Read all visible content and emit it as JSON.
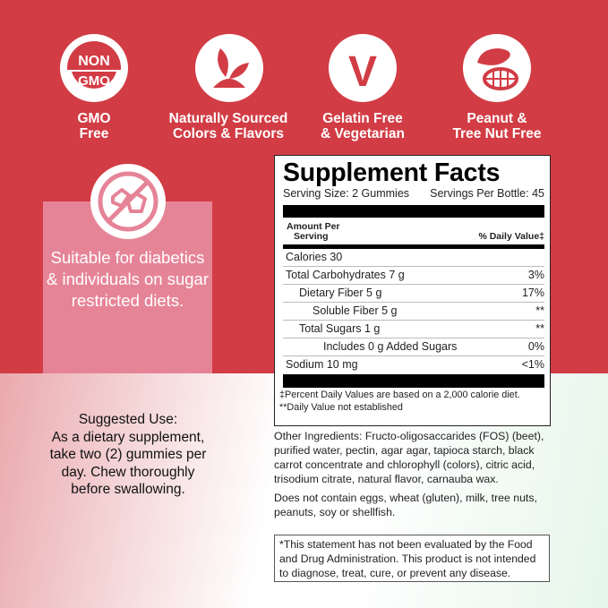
{
  "colors": {
    "brand_red": "#d23c45",
    "pink_panel": "#e68497"
  },
  "badges": [
    {
      "icon": "non-gmo-icon",
      "icon_text_top": "NON",
      "icon_text_bottom": "GMO",
      "line1": "GMO",
      "line2": "Free"
    },
    {
      "icon": "leaf-sprout-icon",
      "line1": "Naturally Sourced",
      "line2": "Colors & Flavors"
    },
    {
      "icon": "vegetarian-v-icon",
      "icon_text": "V",
      "line1": "Gelatin Free",
      "line2": "& Vegetarian"
    },
    {
      "icon": "nut-icon",
      "line1": "Peanut &",
      "line2": "Tree Nut Free"
    }
  ],
  "sugar_panel": {
    "icon": "no-sugar-icon",
    "text": "Suitable for diabetics & individuals on sugar restricted diets."
  },
  "suggested_use": {
    "title": "Suggested Use:",
    "text": "As a dietary supplement, take two (2) gummies per day. Chew thoroughly before swallowing."
  },
  "facts": {
    "title": "Supplement Facts",
    "serving_size": "Serving Size: 2 Gummies",
    "servings_per": "Servings Per Bottle: 45",
    "header_left_1": "Amount Per",
    "header_left_2": "Serving",
    "header_right": "% Daily Value‡",
    "rows": [
      {
        "name": "Calories 30",
        "dv": "",
        "indent": 0
      },
      {
        "name": "Total Carbohydrates 7 g",
        "dv": "3%",
        "indent": 0
      },
      {
        "name": "Dietary Fiber 5 g",
        "dv": "17%",
        "indent": 1
      },
      {
        "name": "Soluble Fiber 5 g",
        "dv": "**",
        "indent": 2
      },
      {
        "name": "Total Sugars 1 g",
        "dv": "**",
        "indent": 1
      },
      {
        "name": "Includes 0 g Added Sugars",
        "dv": "0%",
        "indent": 3
      },
      {
        "name": "Sodium 10 mg",
        "dv": "<1%",
        "indent": 0
      }
    ],
    "footnote_1": "‡Percent Daily Values are based on a 2,000 calorie diet.",
    "footnote_2": "**Daily Value not established"
  },
  "other_ingredients": "Other Ingredients: Fructo-oligosaccarides (FOS) (beet), purified water, pectin, agar agar, tapioca starch, black carrot concentrate and chlorophyll (colors), citric acid, trisodium citrate, natural flavor, carnauba wax.",
  "allergens": "Does not contain eggs, wheat (gluten), milk, tree nuts, peanuts, soy or shellfish.",
  "disclaimer": "*This statement has not been evaluated by the Food and Drug Administration. This product is not intended to diagnose, treat, cure, or prevent any disease."
}
